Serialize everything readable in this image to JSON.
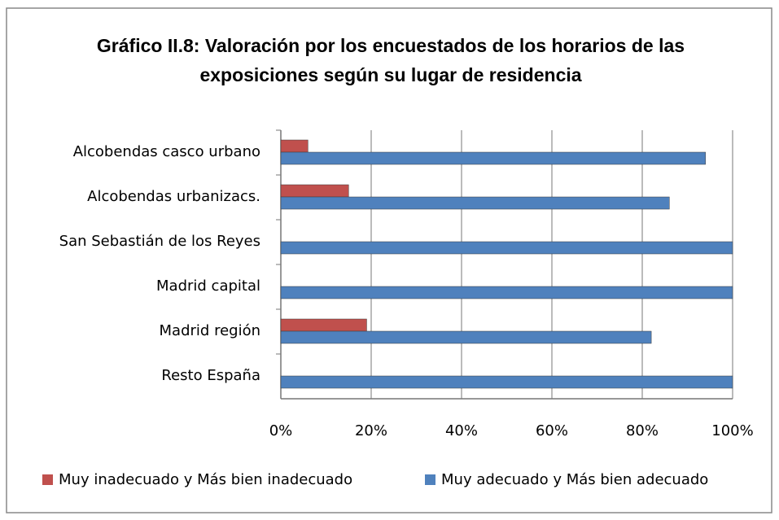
{
  "chart_data": {
    "type": "bar",
    "orientation": "horizontal",
    "title": "Gráfico II.8: Valoración por los encuestados de los horarios de las exposiciones según su lugar de residencia",
    "categories": [
      "Alcobendas casco urbano",
      "Alcobendas urbanizacs.",
      "San Sebastián de los Reyes",
      "Madrid capital",
      "Madrid región",
      "Resto España"
    ],
    "series": [
      {
        "name": "Muy inadecuado y Más bien inadecuado",
        "color": "#c0504d",
        "values": [
          6,
          15,
          0,
          0,
          19,
          0
        ]
      },
      {
        "name": "Muy adecuado y Más bien adecuado",
        "color": "#4f81bd",
        "values": [
          94,
          86,
          100,
          100,
          82,
          100
        ]
      }
    ],
    "xlim": [
      0,
      100
    ],
    "xticks": [
      {
        "value": 0,
        "label": "0%"
      },
      {
        "value": 20,
        "label": "20%"
      },
      {
        "value": 40,
        "label": "40%"
      },
      {
        "value": 60,
        "label": "60%"
      },
      {
        "value": 80,
        "label": "80%"
      },
      {
        "value": 100,
        "label": "100%"
      }
    ],
    "grid": true,
    "legend": "bottom"
  }
}
